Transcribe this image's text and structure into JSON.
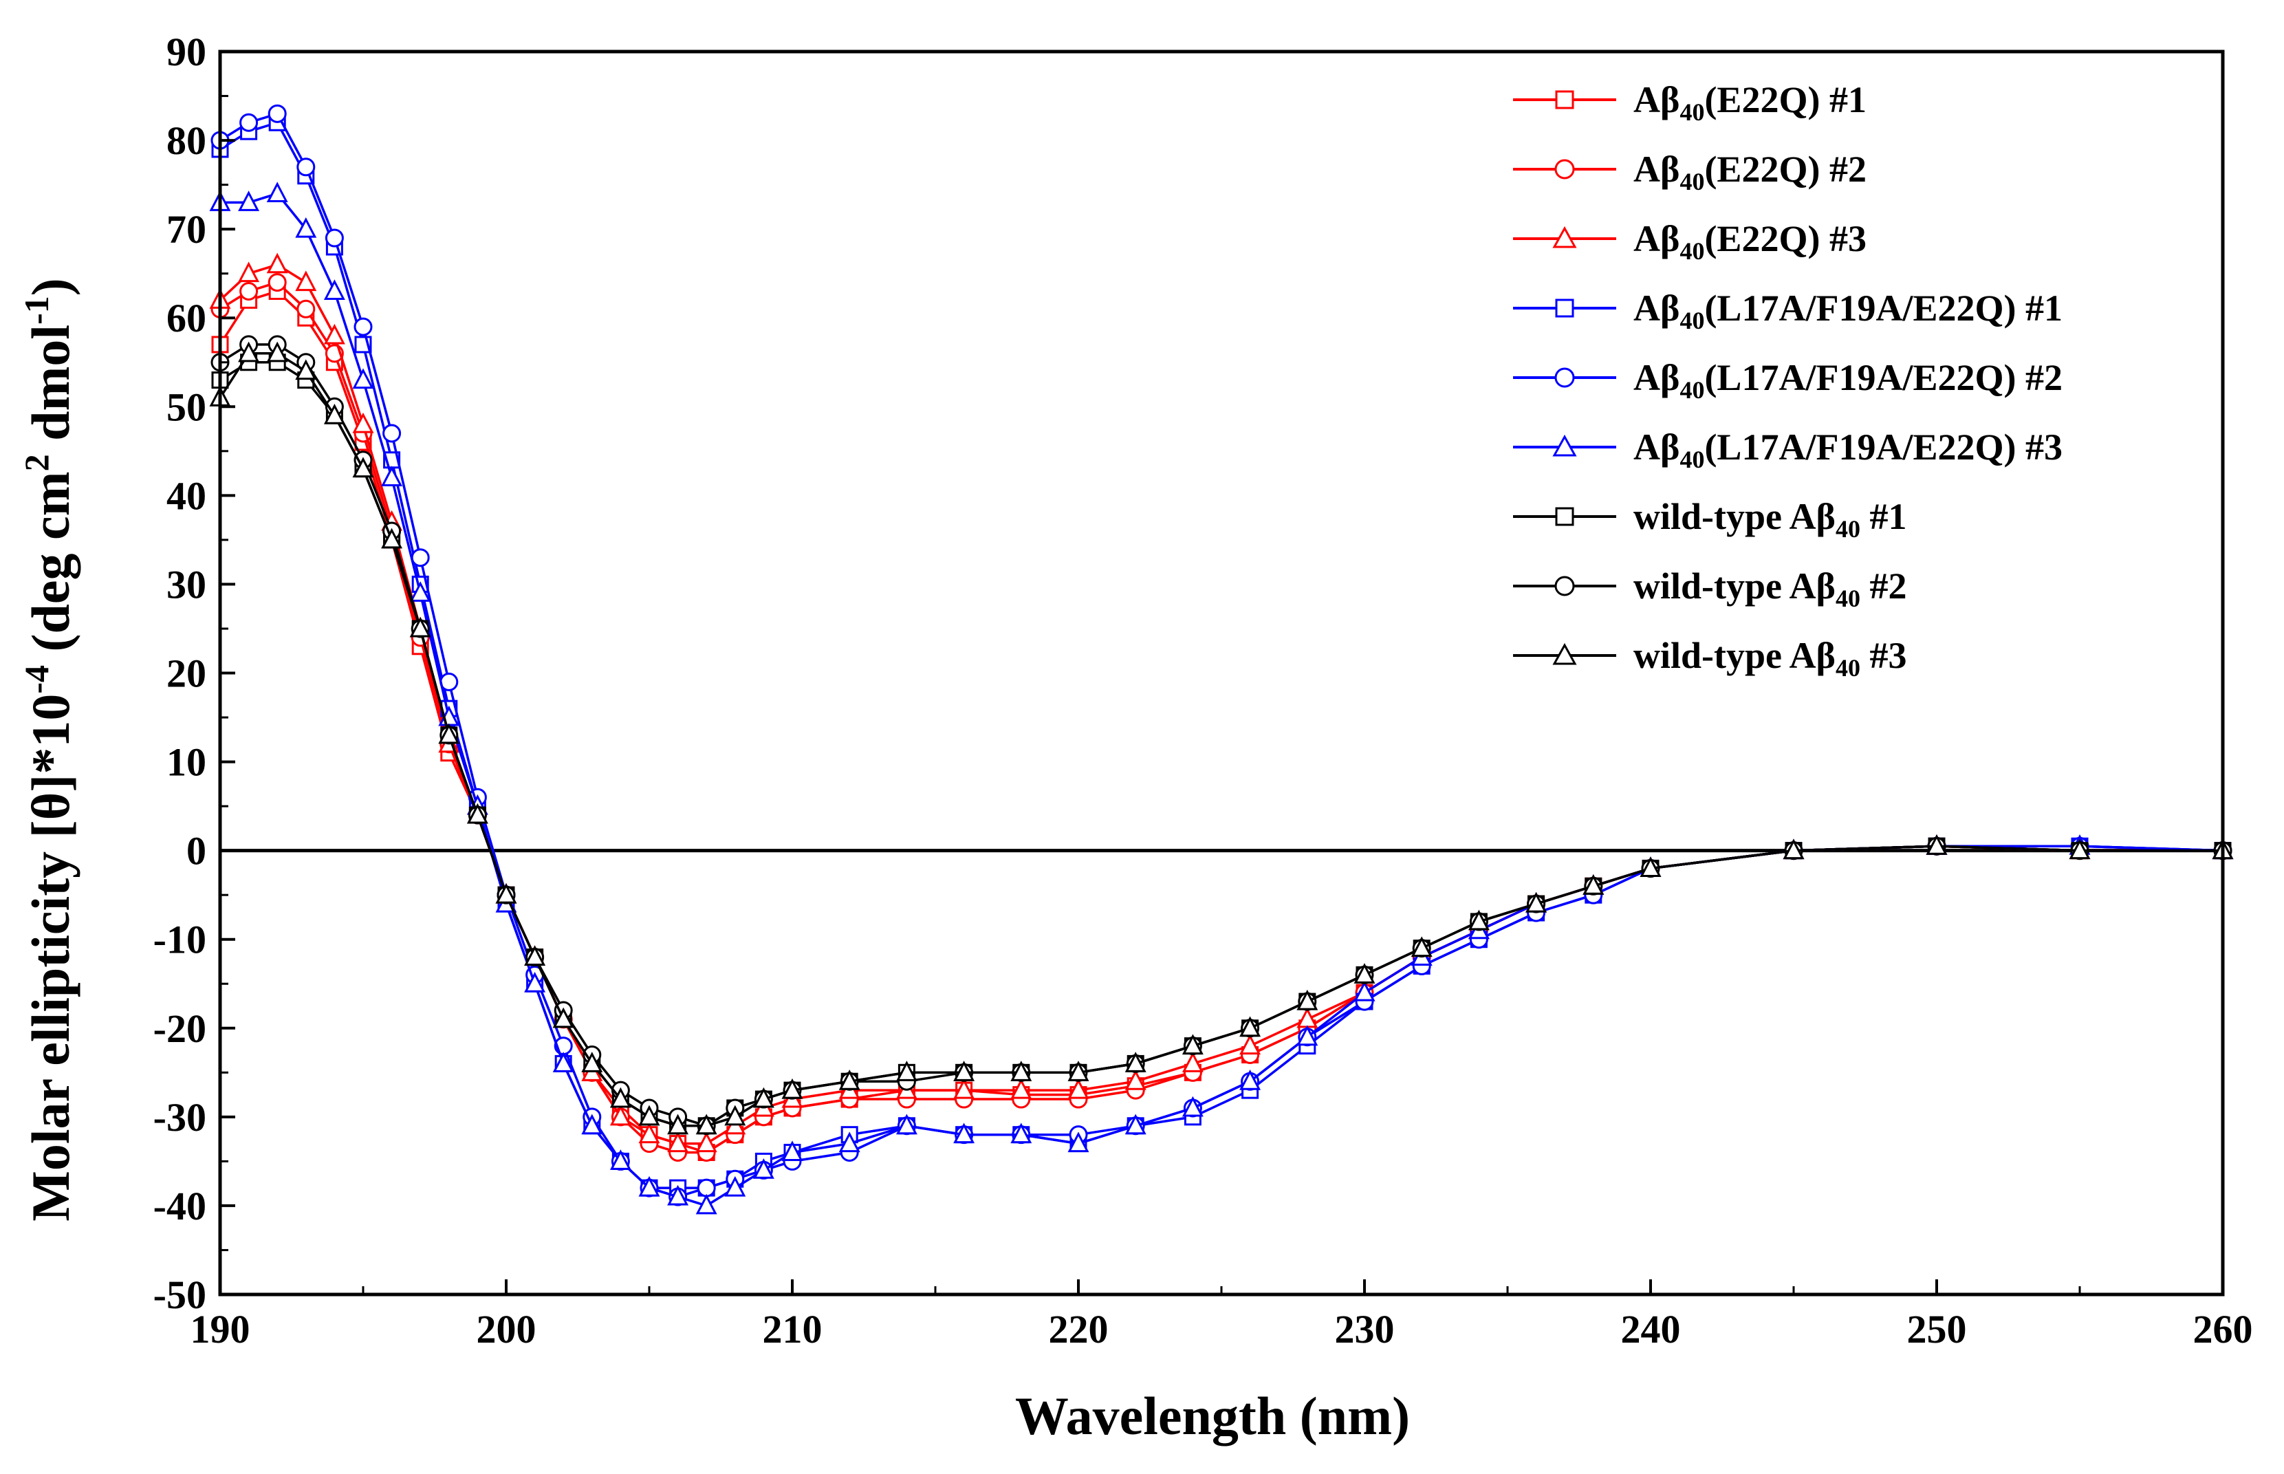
{
  "chart_data": {
    "type": "line",
    "xlabel": "Wavelength (nm)",
    "ylabel": {
      "text_a": "Molar ellipticity [θ]*10",
      "exp_a": "-4",
      "text_b": " (deg cm",
      "exp_b": "2",
      "text_c": " dmol",
      "exp_c": "-1",
      "text_d": ")"
    },
    "xlim": [
      190,
      260
    ],
    "ylim": [
      -50,
      90
    ],
    "xticks": [
      190,
      200,
      210,
      220,
      230,
      240,
      250,
      260
    ],
    "yticks": [
      -50,
      -40,
      -30,
      -20,
      -10,
      0,
      10,
      20,
      30,
      40,
      50,
      60,
      70,
      80,
      90
    ],
    "tick_labels_x": [
      "190",
      "200",
      "210",
      "220",
      "230",
      "240",
      "250",
      "260"
    ],
    "tick_labels_y": [
      "-50",
      "-40",
      "-30",
      "-20",
      "-10",
      "0",
      "10",
      "20",
      "30",
      "40",
      "50",
      "60",
      "70",
      "80",
      "90"
    ],
    "zero_line": 0,
    "series": [
      {
        "name": "Aβ40(E22Q)  #1",
        "label": {
          "pre": "Aβ",
          "sub": "40",
          "post": "(E22Q)  #1"
        },
        "color": "#ff0000",
        "marker": "square",
        "x": [
          190,
          191,
          192,
          193,
          194,
          195,
          196,
          197,
          198,
          199,
          200,
          201,
          202,
          203,
          204,
          205,
          206,
          207,
          208,
          209,
          210,
          212,
          214,
          216,
          218,
          220,
          222,
          224,
          226,
          228,
          230,
          232,
          234,
          236,
          238,
          240,
          245,
          250,
          255,
          260
        ],
        "y": [
          57,
          62,
          63,
          60,
          55,
          46,
          35,
          23,
          11,
          4,
          -5,
          -12,
          -19,
          -25,
          -29,
          -32,
          -33,
          -34,
          -32,
          -30,
          -29,
          -28,
          -27,
          -27,
          -27.5,
          -27.5,
          -26.5,
          -25,
          -23,
          -20,
          -16,
          -12,
          -9,
          -6,
          -4,
          -2,
          0,
          0.5,
          0,
          0
        ]
      },
      {
        "name": "Aβ40(E22Q)  #2",
        "label": {
          "pre": "Aβ",
          "sub": "40",
          "post": "(E22Q)  #2"
        },
        "color": "#ff0000",
        "marker": "circle",
        "x": [
          190,
          191,
          192,
          193,
          194,
          195,
          196,
          197,
          198,
          199,
          200,
          201,
          202,
          203,
          204,
          205,
          206,
          207,
          208,
          209,
          210,
          212,
          214,
          216,
          218,
          220,
          222,
          224,
          226,
          228,
          230,
          232,
          234,
          236,
          238,
          240,
          245,
          250,
          255,
          260
        ],
        "y": [
          61,
          63,
          64,
          61,
          56,
          47,
          36,
          24,
          12,
          4,
          -5,
          -12,
          -19,
          -25,
          -30,
          -33,
          -34,
          -34,
          -32,
          -30,
          -29,
          -28,
          -28,
          -28,
          -28,
          -28,
          -27,
          -25,
          -23,
          -20,
          -16,
          -12,
          -9,
          -6,
          -4,
          -2,
          0,
          0.5,
          0,
          0
        ]
      },
      {
        "name": "Aβ40(E22Q)  #3",
        "label": {
          "pre": "Aβ",
          "sub": "40",
          "post": "(E22Q)  #3"
        },
        "color": "#ff0000",
        "marker": "triangle",
        "x": [
          190,
          191,
          192,
          193,
          194,
          195,
          196,
          197,
          198,
          199,
          200,
          201,
          202,
          203,
          204,
          205,
          206,
          207,
          208,
          209,
          210,
          212,
          214,
          216,
          218,
          220,
          222,
          224,
          226,
          228,
          230,
          232,
          234,
          236,
          238,
          240,
          245,
          250,
          255,
          260
        ],
        "y": [
          62,
          65,
          66,
          64,
          58,
          48,
          37,
          25,
          12,
          4,
          -5,
          -12,
          -19,
          -25,
          -30,
          -32,
          -33,
          -33,
          -31,
          -29,
          -28,
          -27,
          -27,
          -27,
          -27,
          -27,
          -26,
          -24,
          -22,
          -19,
          -16,
          -12,
          -9,
          -6,
          -4,
          -2,
          0,
          0.5,
          0,
          0
        ]
      },
      {
        "name": "Aβ40(L17A/F19A/E22Q)  #1",
        "label": {
          "pre": "Aβ",
          "sub": "40",
          "post": "(L17A/F19A/E22Q)  #1"
        },
        "color": "#0000ff",
        "marker": "square",
        "x": [
          190,
          191,
          192,
          193,
          194,
          195,
          196,
          197,
          198,
          199,
          200,
          201,
          202,
          203,
          204,
          205,
          206,
          207,
          208,
          209,
          210,
          212,
          214,
          216,
          218,
          220,
          222,
          224,
          226,
          228,
          230,
          232,
          234,
          236,
          238,
          240,
          245,
          250,
          255,
          260
        ],
        "y": [
          79,
          81,
          82,
          76,
          68,
          57,
          44,
          30,
          16,
          5,
          -6,
          -15,
          -24,
          -31,
          -35,
          -38,
          -38,
          -38,
          -37,
          -35,
          -34,
          -32,
          -31,
          -32,
          -32,
          -33,
          -31,
          -30,
          -27,
          -22,
          -17,
          -13,
          -10,
          -7,
          -5,
          -2,
          0,
          0.5,
          0.5,
          0
        ]
      },
      {
        "name": "Aβ40(L17A/F19A/E22Q)  #2",
        "label": {
          "pre": "Aβ",
          "sub": "40",
          "post": "(L17A/F19A/E22Q)  #2"
        },
        "color": "#0000ff",
        "marker": "circle",
        "x": [
          190,
          191,
          192,
          193,
          194,
          195,
          196,
          197,
          198,
          199,
          200,
          201,
          202,
          203,
          204,
          205,
          206,
          207,
          208,
          209,
          210,
          212,
          214,
          216,
          218,
          220,
          222,
          224,
          226,
          228,
          230,
          232,
          234,
          236,
          238,
          240,
          245,
          250,
          255,
          260
        ],
        "y": [
          80,
          82,
          83,
          77,
          69,
          59,
          47,
          33,
          19,
          6,
          -5,
          -14,
          -22,
          -30,
          -35,
          -38,
          -39,
          -38,
          -37,
          -36,
          -35,
          -34,
          -31,
          -32,
          -32,
          -32,
          -31,
          -29,
          -26,
          -21,
          -17,
          -13,
          -10,
          -7,
          -5,
          -2,
          0,
          0.5,
          0.5,
          0
        ]
      },
      {
        "name": "Aβ40(L17A/F19A/E22Q)  #3",
        "label": {
          "pre": "Aβ",
          "sub": "40",
          "post": "(L17A/F19A/E22Q)  #3"
        },
        "color": "#0000ff",
        "marker": "triangle",
        "x": [
          190,
          191,
          192,
          193,
          194,
          195,
          196,
          197,
          198,
          199,
          200,
          201,
          202,
          203,
          204,
          205,
          206,
          207,
          208,
          209,
          210,
          212,
          214,
          216,
          218,
          220,
          222,
          224,
          226,
          228,
          230,
          232,
          234,
          236,
          238,
          240,
          245,
          250,
          255,
          260
        ],
        "y": [
          73,
          73,
          74,
          70,
          63,
          53,
          42,
          29,
          15,
          5,
          -6,
          -15,
          -24,
          -31,
          -35,
          -38,
          -39,
          -40,
          -38,
          -36,
          -34,
          -33,
          -31,
          -32,
          -32,
          -33,
          -31,
          -29,
          -26,
          -21,
          -16,
          -12,
          -9,
          -6,
          -4,
          -2,
          0,
          0.5,
          0.5,
          0
        ]
      },
      {
        "name": "wild-type Aβ40 #1",
        "label": {
          "pre": "wild-type Aβ",
          "sub": "40",
          "post": " #1"
        },
        "color": "#000000",
        "marker": "square",
        "x": [
          190,
          191,
          192,
          193,
          194,
          195,
          196,
          197,
          198,
          199,
          200,
          201,
          202,
          203,
          204,
          205,
          206,
          207,
          208,
          209,
          210,
          212,
          214,
          216,
          218,
          220,
          222,
          224,
          226,
          228,
          230,
          232,
          234,
          236,
          238,
          240,
          245,
          250,
          255,
          260
        ],
        "y": [
          53,
          55,
          55,
          53,
          49,
          43,
          35,
          25,
          13,
          4,
          -5,
          -12,
          -19,
          -24,
          -28,
          -30,
          -31,
          -31,
          -29,
          -28,
          -27,
          -26,
          -25,
          -25,
          -25,
          -25,
          -24,
          -22,
          -20,
          -17,
          -14,
          -11,
          -8,
          -6,
          -4,
          -2,
          0,
          0.5,
          0,
          0
        ]
      },
      {
        "name": "wild-type Aβ40 #2",
        "label": {
          "pre": "wild-type Aβ",
          "sub": "40",
          "post": " #2"
        },
        "color": "#000000",
        "marker": "circle",
        "x": [
          190,
          191,
          192,
          193,
          194,
          195,
          196,
          197,
          198,
          199,
          200,
          201,
          202,
          203,
          204,
          205,
          206,
          207,
          208,
          209,
          210,
          212,
          214,
          216,
          218,
          220,
          222,
          224,
          226,
          228,
          230,
          232,
          234,
          236,
          238,
          240,
          245,
          250,
          255,
          260
        ],
        "y": [
          55,
          57,
          57,
          55,
          50,
          44,
          36,
          25,
          13,
          4,
          -5,
          -12,
          -18,
          -23,
          -27,
          -29,
          -30,
          -31,
          -29,
          -28,
          -27,
          -26,
          -26,
          -25,
          -25,
          -25,
          -24,
          -22,
          -20,
          -17,
          -14,
          -11,
          -8,
          -6,
          -4,
          -2,
          0,
          0.5,
          0,
          0
        ]
      },
      {
        "name": "wild-type Aβ40 #3",
        "label": {
          "pre": "wild-type Aβ",
          "sub": "40",
          "post": " #3"
        },
        "color": "#000000",
        "marker": "triangle",
        "x": [
          190,
          191,
          192,
          193,
          194,
          195,
          196,
          197,
          198,
          199,
          200,
          201,
          202,
          203,
          204,
          205,
          206,
          207,
          208,
          209,
          210,
          212,
          214,
          216,
          218,
          220,
          222,
          224,
          226,
          228,
          230,
          232,
          234,
          236,
          238,
          240,
          245,
          250,
          255,
          260
        ],
        "y": [
          51,
          56,
          56,
          54,
          49,
          43,
          35,
          25,
          13,
          4,
          -5,
          -12,
          -19,
          -24,
          -28,
          -30,
          -31,
          -31,
          -30,
          -28,
          -27,
          -26,
          -25,
          -25,
          -25,
          -25,
          -24,
          -22,
          -20,
          -17,
          -14,
          -11,
          -8,
          -6,
          -4,
          -2,
          0,
          0.5,
          0,
          0
        ]
      }
    ]
  }
}
